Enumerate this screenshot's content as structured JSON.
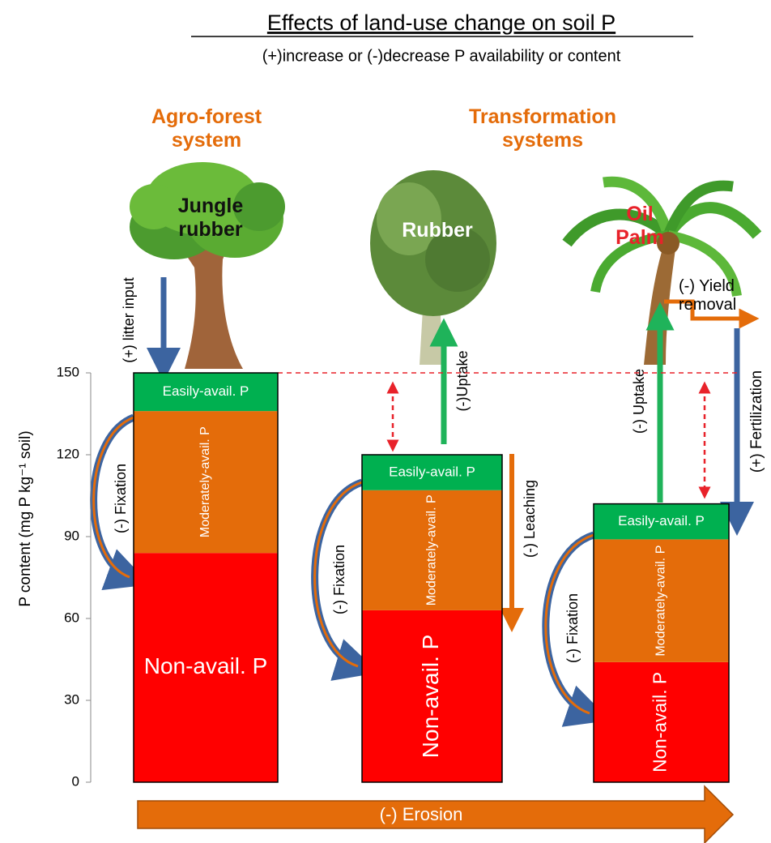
{
  "chart_data": {
    "type": "stacked_bar",
    "title": "Effects of land-use change on soil P",
    "subtitle": "(+)increase or (-)decrease P availability  or content",
    "y_label": "P content (mg P kg⁻¹ soil)",
    "categories": [
      null,
      null,
      null
    ],
    "series": [
      {
        "name": "Non-avail. P",
        "color": "#ff0000",
        "values": [
          84,
          63,
          44
        ]
      },
      {
        "name": "Moderately-avail. P",
        "color": "#e46c0a",
        "values": [
          52,
          44,
          45
        ]
      },
      {
        "name": "Easily-avail. P",
        "color": "#00b050",
        "values": [
          14,
          13,
          13
        ]
      }
    ],
    "ylim": [
      0,
      150
    ],
    "yticks": [
      0,
      30,
      60,
      90,
      120,
      150
    ]
  },
  "annotations": {
    "agroforest": "Agro-forest system",
    "transformation": "Transformation systems",
    "jungle_rubber": "Jungle rubber",
    "rubber": "Rubber",
    "oil_palm": "Oil Palm",
    "litter_input": "(+) litter input",
    "uptake_rubber": "(-)Uptake",
    "uptake_palm": "(-) Uptake",
    "leaching": "(-) Leaching",
    "yield_removal": "(-) Yield removal",
    "fertilization": "(+) Fertilization",
    "fixation": [
      "(-) Fixation",
      "(-) Fixation",
      "(-) Fixation"
    ],
    "erosion": "(-) Erosion"
  }
}
